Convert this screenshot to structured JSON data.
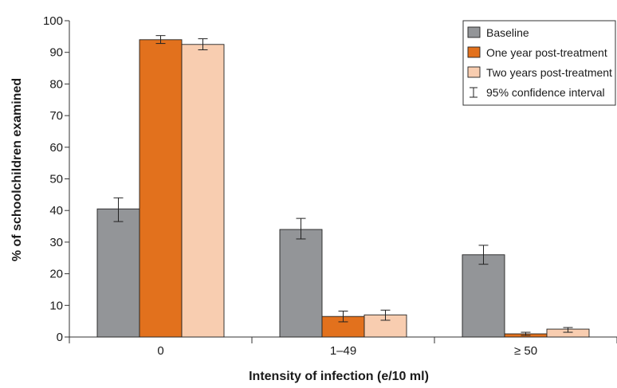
{
  "chart_data": {
    "type": "bar",
    "title": "",
    "xlabel": "Intensity of infection (e/10 ml)",
    "ylabel": "% of schoolchildren examined",
    "categories": [
      "0",
      "1–49",
      "≥ 50"
    ],
    "ylim": [
      0,
      100
    ],
    "yticks": [
      0,
      10,
      20,
      30,
      40,
      50,
      60,
      70,
      80,
      90,
      100
    ],
    "grid": false,
    "legend_position": "top-right",
    "series": [
      {
        "name": "Baseline",
        "color": "#939598",
        "values": [
          40.5,
          34.0,
          26.0
        ],
        "ci_low": [
          36.5,
          31.0,
          23.0
        ],
        "ci_high": [
          44.0,
          37.5,
          29.0
        ]
      },
      {
        "name": "One year post-treatment",
        "color": "#e2711d",
        "values": [
          94.0,
          6.5,
          1.0
        ],
        "ci_low": [
          92.8,
          4.8,
          0.5
        ],
        "ci_high": [
          95.3,
          8.2,
          1.5
        ]
      },
      {
        "name": "Two years post-treatment",
        "color": "#f8cdb0",
        "values": [
          92.5,
          7.0,
          2.5
        ],
        "ci_low": [
          90.8,
          5.3,
          1.5
        ],
        "ci_high": [
          94.3,
          8.5,
          3.0
        ]
      }
    ],
    "ci_legend_label": "95% confidence interval"
  }
}
